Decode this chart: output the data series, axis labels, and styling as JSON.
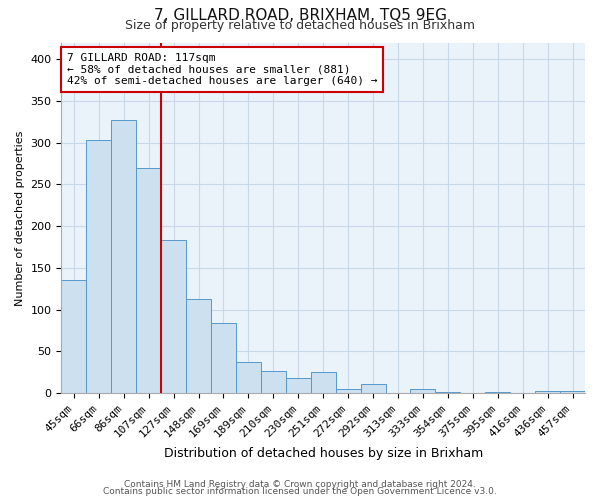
{
  "title": "7, GILLARD ROAD, BRIXHAM, TQ5 9EG",
  "subtitle": "Size of property relative to detached houses in Brixham",
  "xlabel": "Distribution of detached houses by size in Brixham",
  "ylabel": "Number of detached properties",
  "bar_labels": [
    "45sqm",
    "66sqm",
    "86sqm",
    "107sqm",
    "127sqm",
    "148sqm",
    "169sqm",
    "189sqm",
    "210sqm",
    "230sqm",
    "251sqm",
    "272sqm",
    "292sqm",
    "313sqm",
    "333sqm",
    "354sqm",
    "375sqm",
    "395sqm",
    "416sqm",
    "436sqm",
    "457sqm"
  ],
  "bar_values": [
    135,
    303,
    327,
    270,
    183,
    113,
    84,
    37,
    27,
    18,
    25,
    5,
    11,
    0,
    5,
    1,
    0,
    2,
    0,
    3,
    3
  ],
  "bar_color": "#cce0f0",
  "bar_edge_color": "#5599cc",
  "vline_index": 3,
  "vline_color": "#cc0000",
  "annotation_text": "7 GILLARD ROAD: 117sqm\n← 58% of detached houses are smaller (881)\n42% of semi-detached houses are larger (640) →",
  "annotation_box_color": "#ffffff",
  "annotation_box_edge": "#cc0000",
  "ylim": [
    0,
    420
  ],
  "yticks": [
    0,
    50,
    100,
    150,
    200,
    250,
    300,
    350,
    400
  ],
  "footer1": "Contains HM Land Registry data © Crown copyright and database right 2024.",
  "footer2": "Contains public sector information licensed under the Open Government Licence v3.0.",
  "bg_color": "#ffffff",
  "plot_bg_color": "#eaf2fa",
  "grid_color": "#c8d8e8",
  "title_fontsize": 11,
  "subtitle_fontsize": 9,
  "xlabel_fontsize": 9,
  "ylabel_fontsize": 8,
  "tick_fontsize": 8,
  "annotation_fontsize": 8,
  "footer_fontsize": 6.5
}
